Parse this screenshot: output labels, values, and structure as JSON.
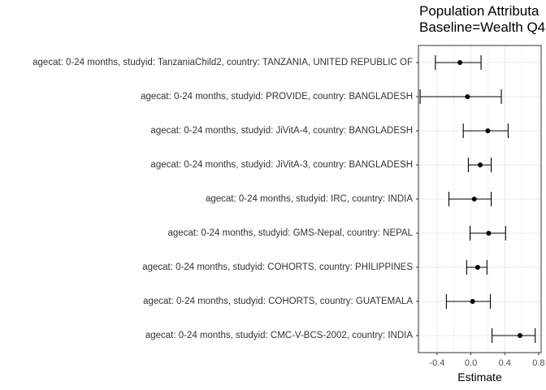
{
  "chart_data": {
    "type": "forest",
    "title_lines": [
      "Population Attributa",
      "Baseline=Wealth Q4"
    ],
    "xlabel": "Estimate",
    "ylabel": "",
    "xlim": [
      -0.62,
      0.83
    ],
    "xticks": [
      -0.4,
      0.0,
      0.4,
      0.8
    ],
    "xtick_labels": [
      "-0.4",
      "0.0",
      "0.4",
      "0.8"
    ],
    "grid": true,
    "categories": [
      "agecat: 0-24 months, studyid: TanzaniaChild2, country: TANZANIA, UNITED REPUBLIC OF",
      "agecat: 0-24 months, studyid: PROVIDE, country: BANGLADESH",
      "agecat: 0-24 months, studyid: JiVitA-4, country: BANGLADESH",
      "agecat: 0-24 months, studyid: JiVitA-3, country: BANGLADESH",
      "agecat: 0-24 months, studyid: IRC, country: INDIA",
      "agecat: 0-24 months, studyid: GMS-Nepal, country: NEPAL",
      "agecat: 0-24 months, studyid: COHORTS, country: PHILIPPINES",
      "agecat: 0-24 months, studyid: COHORTS, country: GUATEMALA",
      "agecat: 0-24 months, studyid: CMC-V-BCS-2002, country: INDIA"
    ],
    "estimates": [
      -0.13,
      -0.04,
      0.2,
      0.11,
      0.04,
      0.21,
      0.08,
      0.02,
      0.58
    ],
    "lower": [
      -0.42,
      -0.6,
      -0.09,
      -0.03,
      -0.26,
      -0.01,
      -0.05,
      -0.29,
      0.25
    ],
    "upper": [
      0.12,
      0.36,
      0.44,
      0.24,
      0.24,
      0.41,
      0.19,
      0.23,
      0.76
    ]
  },
  "colors": {
    "panel_bg": "#ffffff",
    "grid": "#ebebeb",
    "border": "#333333",
    "point": "#000000"
  }
}
